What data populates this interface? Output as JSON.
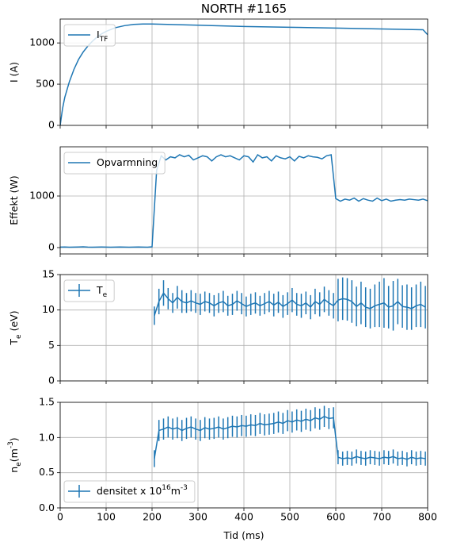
{
  "chart_data": [
    {
      "type": "line",
      "title": "NORTH #1165",
      "ylabel": "I (A)",
      "legend": "upper left",
      "grid": true,
      "xlim": [
        0,
        800
      ],
      "xticks": [
        0,
        100,
        200,
        300,
        400,
        500,
        600,
        700,
        800
      ],
      "ylim": [
        0,
        1290
      ],
      "yticks": [
        0,
        500,
        1000
      ],
      "series": [
        {
          "name": "I_{TF}",
          "color": "#1f77b4",
          "x": [
            0,
            5,
            10,
            20,
            30,
            40,
            50,
            60,
            70,
            80,
            90,
            100,
            120,
            140,
            160,
            180,
            200,
            300,
            400,
            500,
            600,
            700,
            790,
            800
          ],
          "values": [
            0,
            200,
            340,
            530,
            680,
            800,
            890,
            960,
            1020,
            1070,
            1110,
            1140,
            1185,
            1210,
            1225,
            1230,
            1230,
            1215,
            1200,
            1190,
            1180,
            1170,
            1160,
            1100
          ]
        }
      ]
    },
    {
      "type": "line",
      "ylabel": "Effekt (W)",
      "legend": "upper left",
      "grid": true,
      "xlim": [
        0,
        800
      ],
      "xticks": [
        0,
        100,
        200,
        300,
        400,
        500,
        600,
        700,
        800
      ],
      "ylim": [
        -123,
        1954
      ],
      "yticks": [
        0,
        1000
      ],
      "series": [
        {
          "name": "Opvarmning",
          "color": "#1f77b4",
          "x": [
            0,
            10,
            20,
            30,
            40,
            50,
            60,
            70,
            80,
            90,
            100,
            110,
            120,
            130,
            140,
            150,
            160,
            170,
            180,
            190,
            200,
            210,
            220,
            230,
            240,
            250,
            260,
            270,
            280,
            290,
            300,
            310,
            320,
            330,
            340,
            350,
            360,
            370,
            380,
            390,
            400,
            410,
            420,
            430,
            440,
            450,
            460,
            470,
            480,
            490,
            500,
            510,
            520,
            530,
            540,
            550,
            560,
            570,
            580,
            590,
            600,
            610,
            620,
            630,
            640,
            650,
            660,
            670,
            680,
            690,
            700,
            710,
            720,
            730,
            740,
            750,
            760,
            770,
            780,
            790,
            800
          ],
          "values": [
            10,
            12,
            8,
            10,
            12,
            15,
            10,
            8,
            10,
            12,
            10,
            8,
            10,
            12,
            10,
            8,
            10,
            12,
            10,
            8,
            15,
            1500,
            1780,
            1700,
            1760,
            1740,
            1800,
            1760,
            1790,
            1700,
            1740,
            1780,
            1760,
            1680,
            1760,
            1800,
            1760,
            1780,
            1740,
            1700,
            1780,
            1760,
            1660,
            1800,
            1740,
            1760,
            1680,
            1780,
            1740,
            1720,
            1760,
            1680,
            1770,
            1740,
            1780,
            1760,
            1750,
            1720,
            1780,
            1800,
            950,
            900,
            940,
            920,
            960,
            900,
            950,
            920,
            900,
            960,
            910,
            940,
            900,
            920,
            930,
            920,
            940,
            930,
            920,
            940,
            910
          ]
        }
      ]
    },
    {
      "type": "errorbar",
      "ylabel": "T_{e} (eV)",
      "legend": "upper left",
      "grid": true,
      "xlim": [
        0,
        800
      ],
      "xticks": [
        0,
        100,
        200,
        300,
        400,
        500,
        600,
        700,
        800
      ],
      "ylim": [
        0,
        15
      ],
      "yticks": [
        0,
        5,
        10,
        15
      ],
      "series": [
        {
          "name": "T_{e}",
          "color": "#1f77b4",
          "x": [
            205,
            215,
            225,
            235,
            245,
            255,
            265,
            275,
            285,
            295,
            305,
            315,
            325,
            335,
            345,
            355,
            365,
            375,
            385,
            395,
            405,
            415,
            425,
            435,
            445,
            455,
            465,
            475,
            485,
            495,
            505,
            515,
            525,
            535,
            545,
            555,
            565,
            575,
            585,
            595,
            605,
            615,
            625,
            635,
            645,
            655,
            665,
            675,
            685,
            695,
            705,
            715,
            725,
            735,
            745,
            755,
            765,
            775,
            785,
            795
          ],
          "values": [
            9.2,
            11.2,
            12.4,
            11.6,
            11.0,
            11.8,
            11.2,
            11.0,
            11.3,
            11.0,
            10.8,
            11.2,
            11.0,
            10.6,
            11.0,
            11.2,
            10.6,
            10.8,
            11.3,
            10.9,
            10.5,
            10.8,
            11.0,
            10.6,
            10.9,
            11.2,
            10.7,
            11.1,
            10.5,
            10.9,
            11.4,
            10.8,
            10.6,
            11.0,
            10.4,
            11.2,
            10.8,
            11.5,
            11.0,
            10.6,
            11.4,
            11.6,
            11.5,
            11.2,
            10.5,
            11.0,
            10.4,
            10.2,
            10.6,
            10.8,
            11.0,
            10.4,
            10.6,
            11.2,
            10.5,
            10.4,
            10.2,
            10.6,
            10.8,
            10.4
          ],
          "errors": [
            1.3,
            1.8,
            1.8,
            1.5,
            1.4,
            1.6,
            1.6,
            1.4,
            1.5,
            1.4,
            1.5,
            1.4,
            1.4,
            1.5,
            1.4,
            1.5,
            1.4,
            1.5,
            1.4,
            1.5,
            1.4,
            1.5,
            1.5,
            1.4,
            1.5,
            1.5,
            1.6,
            1.5,
            1.6,
            1.6,
            1.7,
            1.6,
            1.7,
            1.6,
            1.7,
            1.8,
            1.7,
            1.8,
            1.8,
            1.8,
            3.0,
            3.0,
            3.0,
            3.0,
            2.8,
            3.0,
            2.8,
            2.8,
            3.0,
            3.2,
            3.5,
            3.0,
            3.5,
            3.2,
            3.0,
            3.2,
            3.0,
            3.0,
            3.2,
            3.0
          ]
        }
      ]
    },
    {
      "type": "errorbar",
      "ylabel": "n_{e}(m^{-3})",
      "xlabel": "Tid (ms)",
      "legend": "lower left",
      "grid": true,
      "xlim": [
        0,
        800
      ],
      "xticks": [
        0,
        100,
        200,
        300,
        400,
        500,
        600,
        700,
        800
      ],
      "ylim": [
        0,
        1.5
      ],
      "yticks": [
        {
          "value": 0,
          "label": "0.0"
        },
        0.5,
        {
          "value": 1,
          "label": "1.0"
        },
        1.5
      ],
      "series": [
        {
          "name": "densitet x 10^{16}m^{-3}",
          "color": "#1f77b4",
          "x": [
            205,
            215,
            225,
            235,
            245,
            255,
            265,
            275,
            285,
            295,
            305,
            315,
            325,
            335,
            345,
            355,
            365,
            375,
            385,
            395,
            405,
            415,
            425,
            435,
            445,
            455,
            465,
            475,
            485,
            495,
            505,
            515,
            525,
            535,
            545,
            555,
            565,
            575,
            585,
            595,
            605,
            615,
            625,
            635,
            645,
            655,
            665,
            675,
            685,
            695,
            705,
            715,
            725,
            735,
            745,
            755,
            765,
            775,
            785,
            795
          ],
          "values": [
            0.7,
            1.1,
            1.12,
            1.15,
            1.12,
            1.14,
            1.1,
            1.13,
            1.15,
            1.12,
            1.1,
            1.14,
            1.12,
            1.13,
            1.15,
            1.12,
            1.14,
            1.16,
            1.15,
            1.17,
            1.16,
            1.18,
            1.17,
            1.2,
            1.18,
            1.19,
            1.2,
            1.22,
            1.2,
            1.24,
            1.22,
            1.25,
            1.23,
            1.26,
            1.24,
            1.28,
            1.26,
            1.3,
            1.27,
            1.28,
            0.72,
            0.7,
            0.71,
            0.7,
            0.73,
            0.71,
            0.7,
            0.72,
            0.71,
            0.7,
            0.72,
            0.71,
            0.73,
            0.7,
            0.71,
            0.69,
            0.72,
            0.7,
            0.71,
            0.7
          ],
          "errors": [
            0.12,
            0.15,
            0.15,
            0.15,
            0.15,
            0.15,
            0.15,
            0.15,
            0.15,
            0.15,
            0.15,
            0.15,
            0.15,
            0.15,
            0.15,
            0.15,
            0.15,
            0.15,
            0.15,
            0.15,
            0.15,
            0.15,
            0.15,
            0.15,
            0.15,
            0.15,
            0.15,
            0.15,
            0.15,
            0.15,
            0.15,
            0.15,
            0.15,
            0.15,
            0.15,
            0.15,
            0.15,
            0.15,
            0.15,
            0.15,
            0.1,
            0.1,
            0.1,
            0.1,
            0.1,
            0.1,
            0.1,
            0.1,
            0.1,
            0.1,
            0.1,
            0.1,
            0.1,
            0.1,
            0.1,
            0.1,
            0.1,
            0.1,
            0.1,
            0.1
          ]
        }
      ]
    }
  ]
}
